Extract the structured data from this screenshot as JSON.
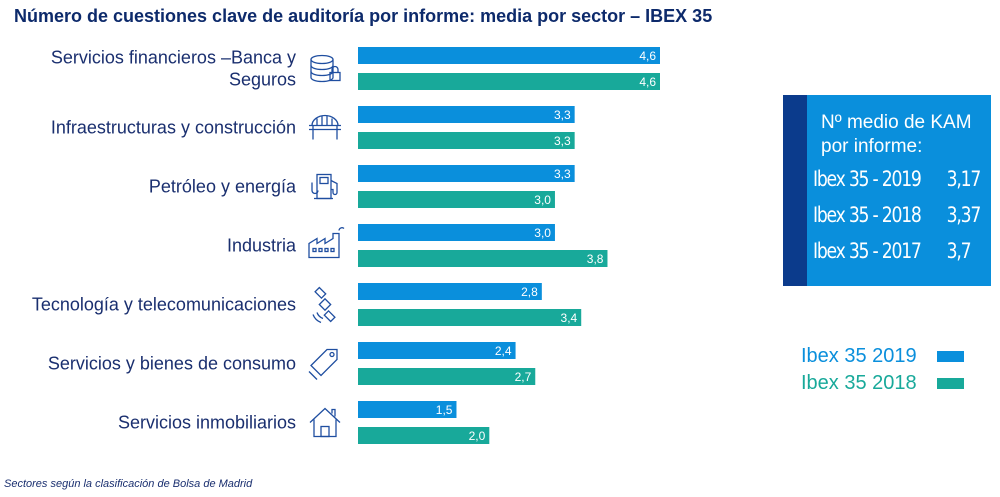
{
  "title": "Número de cuestiones clave de auditoría por informe: media por sector – IBEX 35",
  "chart_data": {
    "type": "bar",
    "orientation": "horizontal",
    "categories": [
      [
        "Servicios financieros –Banca y",
        "Seguros"
      ],
      [
        "Infraestructuras y construcción"
      ],
      [
        "Petróleo y energía"
      ],
      [
        "Industria"
      ],
      [
        "Tecnología y telecomunicaciones"
      ],
      [
        "Servicios y bienes de consumo"
      ],
      [
        "Servicios inmobiliarios"
      ]
    ],
    "category_icons": [
      "database-lock-icon",
      "bridge-icon",
      "fuel-pump-icon",
      "factory-icon",
      "satellite-icon",
      "tag-icon",
      "house-icon"
    ],
    "series": [
      {
        "name": "Ibex 35 2019",
        "color": "#0a8fdc",
        "values": [
          4.6,
          3.3,
          3.3,
          3.0,
          2.8,
          2.4,
          1.5
        ],
        "labels": [
          "4,6",
          "3,3",
          "3,3",
          "3,0",
          "2,8",
          "2,4",
          "1,5"
        ]
      },
      {
        "name": "Ibex 35 2018",
        "color": "#18a99a",
        "values": [
          4.6,
          3.3,
          3.0,
          3.8,
          3.4,
          2.7,
          2.0
        ],
        "labels": [
          "4,6",
          "3,3",
          "3,0",
          "3,8",
          "3,4",
          "2,7",
          "2,0"
        ]
      }
    ],
    "xlim": [
      0,
      4.6
    ],
    "grid": false,
    "legend_position": "right"
  },
  "kam_box": {
    "heading": "Nº medio de KAM por informe:",
    "rows": [
      {
        "label": "Ibex 35 - 2019",
        "value": "3,17"
      },
      {
        "label": "Ibex 35 - 2018",
        "value": "3,37"
      },
      {
        "label": "Ibex 35 - 2017",
        "value": "3,7"
      }
    ]
  },
  "legend": [
    {
      "label": "Ibex 35 2019",
      "color": "#0a8fdc"
    },
    {
      "label": "Ibex 35 2018",
      "color": "#18a99a"
    }
  ],
  "footnote": "Sectores según la clasificación de Bolsa de Madrid"
}
